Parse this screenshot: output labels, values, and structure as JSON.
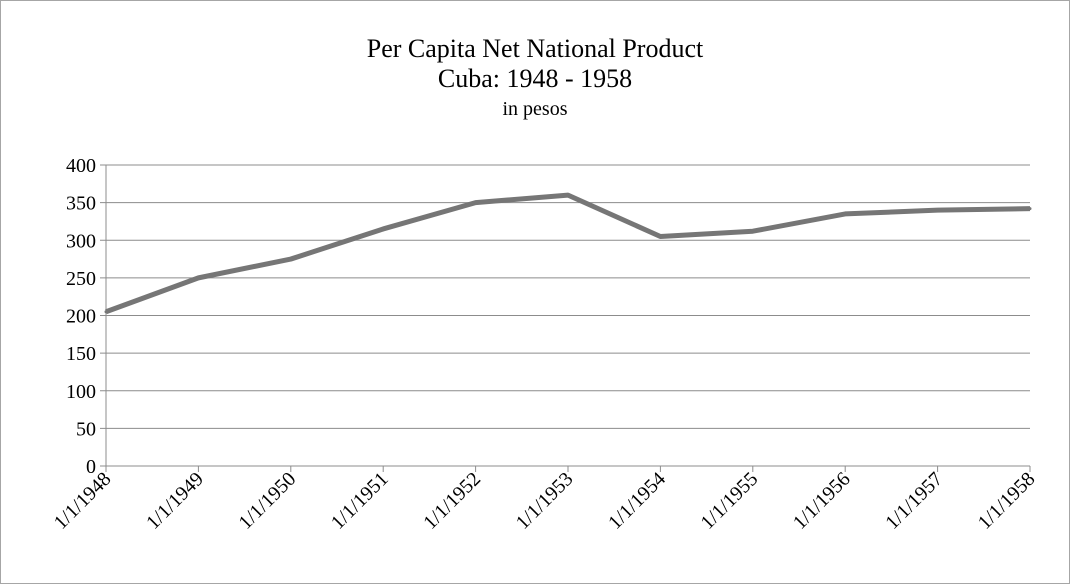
{
  "chart_data": {
    "type": "line",
    "title": "Per Capita Net National Product",
    "title_line2": "Cuba: 1948 - 1958",
    "subtitle": "in pesos",
    "xlabel": "",
    "ylabel": "",
    "categories": [
      "1/1/1948",
      "1/1/1949",
      "1/1/1950",
      "1/1/1951",
      "1/1/1952",
      "1/1/1953",
      "1/1/1954",
      "1/1/1955",
      "1/1/1956",
      "1/1/1957",
      "1/1/1958"
    ],
    "series": [
      {
        "values": [
          205,
          250,
          275,
          315,
          350,
          360,
          305,
          312,
          335,
          340,
          342
        ],
        "color": "#767676"
      }
    ],
    "ylim": [
      0,
      400
    ],
    "yticks": [
      0,
      50,
      100,
      150,
      200,
      250,
      300,
      350,
      400
    ],
    "grid": true,
    "legend": "none"
  }
}
